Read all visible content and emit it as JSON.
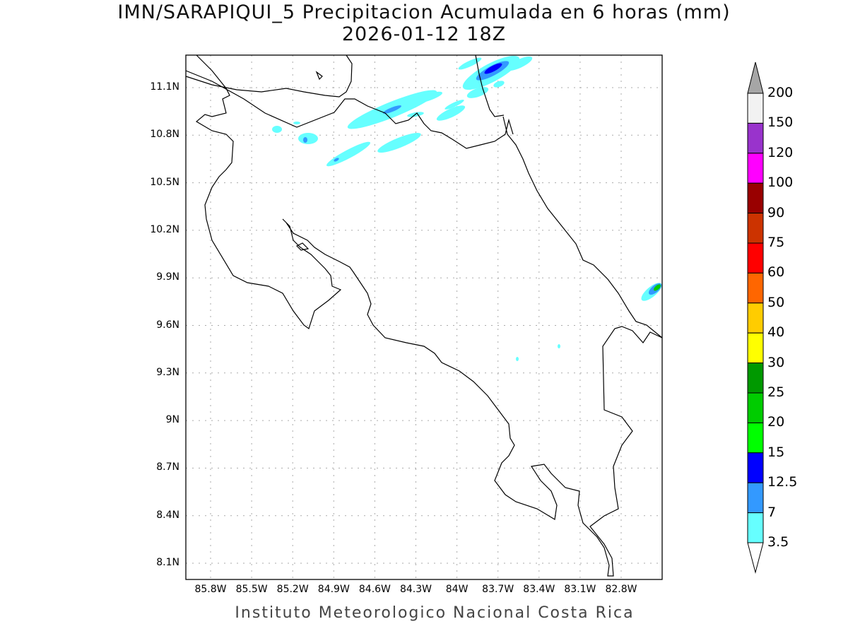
{
  "title": "IMN/SARAPIQUI_5 Precipitacion Acumulada en 6 horas (mm)",
  "subtitle": "2026-01-12 18Z",
  "footer": "Instituto Meteorologico Nacional Costa Rica",
  "lat_labels": [
    "11.1N",
    "10.8N",
    "10.5N",
    "10.2N",
    "9.9N",
    "9.6N",
    "9.3N",
    "9N",
    "8.7N",
    "8.4N",
    "8.1N"
  ],
  "lon_labels": [
    "85.8W",
    "85.5W",
    "85.2W",
    "84.9W",
    "84.6W",
    "84.3W",
    "84W",
    "83.7W",
    "83.4W",
    "83.1W",
    "82.8W"
  ],
  "colorbar": {
    "labels": [
      "200",
      "150",
      "120",
      "100",
      "90",
      "75",
      "60",
      "50",
      "40",
      "30",
      "25",
      "20",
      "15",
      "12.5",
      "7",
      "3.5"
    ],
    "colors": [
      "#f2f2f2",
      "#9933cc",
      "#ff00ff",
      "#990000",
      "#cc3300",
      "#ff0000",
      "#ff6600",
      "#ffcc00",
      "#ffff00",
      "#009900",
      "#00cc00",
      "#00ff00",
      "#0000ff",
      "#3399ff",
      "#66ffff"
    ],
    "over_color": "#a6a6a6",
    "under_color": "#ffffff"
  }
}
